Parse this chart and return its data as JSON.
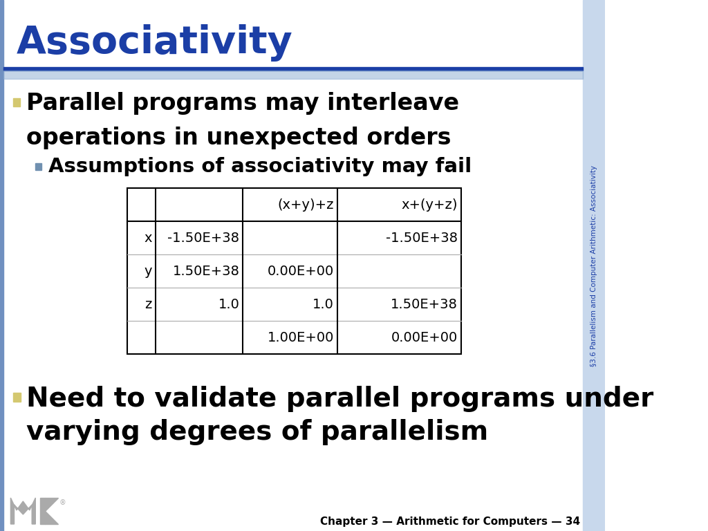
{
  "title": "Associativity",
  "title_color": "#1B3EA6",
  "bg_color": "#FFFFFF",
  "sidebar_text": "§3.6 Parallelism and Computer Arithmetic: Associativity",
  "sidebar_bg": "#C8D8EC",
  "sidebar_text_color": "#1B3EA6",
  "header_line_color1": "#1B3EA6",
  "header_line_color2": "#8AAAD0",
  "left_bar_color": "#7090C0",
  "bullet1_line1": "Parallel programs may interleave",
  "bullet1_line2": "operations in unexpected orders",
  "bullet1_marker_color": "#D4C870",
  "sub_bullet1": "Assumptions of associativity may fail",
  "sub_bullet1_marker_color": "#7090B0",
  "bullet2_line1": "Need to validate parallel programs under",
  "bullet2_line2": "varying degrees of parallelism",
  "bullet2_marker_color": "#D4C870",
  "table_col_headers": [
    "",
    "",
    "(x+y)+z",
    "x+(y+z)"
  ],
  "table_rows": [
    [
      "x",
      "-1.50E+38",
      "",
      "-1.50E+38"
    ],
    [
      "y",
      "1.50E+38",
      "0.00E+00",
      ""
    ],
    [
      "z",
      "1.0",
      "1.0",
      "1.50E+38"
    ],
    [
      "",
      "",
      "1.00E+00",
      "0.00E+00"
    ]
  ],
  "footer_text": "Chapter 3 — Arithmetic for Computers — 34",
  "footer_color": "#000000",
  "title_bg_color": "#FFFFFF"
}
